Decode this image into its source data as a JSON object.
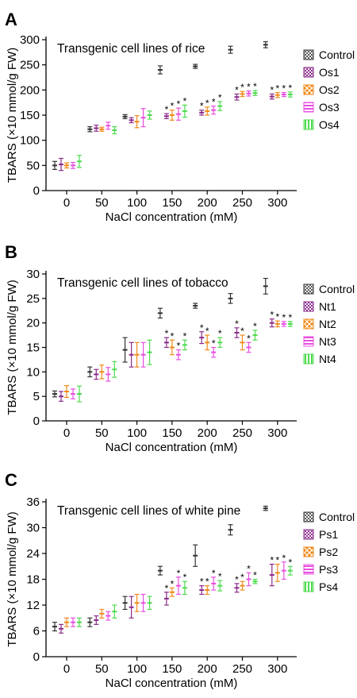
{
  "figure": {
    "panel_letters": [
      "A",
      "B",
      "C"
    ]
  },
  "colors": {
    "Control": "#333333",
    "series1": "#8a2b8a",
    "series2": "#f08a1a",
    "series3": "#e84fe0",
    "series4": "#4ddb4d",
    "axis": "#000000",
    "star": "#000000"
  },
  "chart_data": [
    {
      "type": "scatter",
      "panel": "A",
      "annotation": "Transgenic cell lines of rice",
      "xlabel": "NaCl concentration (mM)",
      "ylabel": "TBARS (×10 mmol/g FW)",
      "x_ticks": [
        "0",
        "50",
        "100",
        "150",
        "200",
        "250",
        "300"
      ],
      "y_ticks": [
        "0",
        "50",
        "100",
        "150",
        "200",
        "250",
        "300"
      ],
      "ylim": [
        0,
        300
      ],
      "legend": [
        "Control",
        "Os1",
        "Os2",
        "Os3",
        "Os4"
      ],
      "legend_position": "right",
      "series": [
        {
          "name": "Control",
          "x": [
            0,
            50,
            100,
            150,
            200,
            250,
            300
          ],
          "y": [
            50,
            122,
            147,
            240,
            247,
            280,
            290
          ],
          "err": [
            8,
            5,
            4,
            8,
            4,
            7,
            6
          ],
          "stars": [
            false,
            false,
            false,
            false,
            false,
            false,
            false
          ]
        },
        {
          "name": "Os1",
          "x": [
            0,
            50,
            100,
            150,
            200,
            250,
            300
          ],
          "y": [
            52,
            124,
            140,
            148,
            155,
            186,
            187
          ],
          "err": [
            12,
            6,
            5,
            5,
            5,
            6,
            5
          ],
          "stars": [
            false,
            false,
            false,
            true,
            true,
            true,
            true
          ]
        },
        {
          "name": "Os2",
          "x": [
            0,
            50,
            100,
            150,
            200,
            250,
            300
          ],
          "y": [
            50,
            122,
            137,
            150,
            158,
            192,
            190
          ],
          "err": [
            5,
            4,
            12,
            10,
            8,
            5,
            5
          ],
          "stars": [
            false,
            false,
            false,
            true,
            true,
            true,
            true
          ]
        },
        {
          "name": "Os3",
          "x": [
            0,
            50,
            100,
            150,
            200,
            250,
            300
          ],
          "y": [
            50,
            129,
            145,
            152,
            160,
            193,
            191
          ],
          "err": [
            6,
            7,
            18,
            12,
            8,
            5,
            4
          ],
          "stars": [
            false,
            false,
            false,
            true,
            true,
            true,
            true
          ]
        },
        {
          "name": "Os4",
          "x": [
            0,
            50,
            100,
            150,
            200,
            250,
            300
          ],
          "y": [
            58,
            120,
            150,
            158,
            168,
            194,
            191
          ],
          "err": [
            12,
            7,
            8,
            12,
            9,
            5,
            5
          ],
          "stars": [
            false,
            false,
            false,
            true,
            true,
            true,
            true
          ]
        }
      ]
    },
    {
      "type": "scatter",
      "panel": "B",
      "annotation": "Transgenic cell lines of tobacco",
      "xlabel": "NaCl concentration (mM)",
      "ylabel": "TBARS (×10 mmol/g FW)",
      "x_ticks": [
        "0",
        "50",
        "100",
        "150",
        "200",
        "250",
        "300"
      ],
      "y_ticks": [
        "0",
        "5",
        "10",
        "15",
        "20",
        "25",
        "30"
      ],
      "ylim": [
        0,
        30
      ],
      "legend": [
        "Control",
        "Nt1",
        "Nt2",
        "Nt3",
        "Nt4"
      ],
      "legend_position": "right",
      "series": [
        {
          "name": "Control",
          "x": [
            0,
            50,
            100,
            150,
            200,
            250,
            300
          ],
          "y": [
            5.5,
            10,
            14.5,
            22,
            23.5,
            25,
            27.5
          ],
          "err": [
            0.6,
            1.0,
            2.5,
            1.0,
            0.5,
            1.0,
            1.6
          ],
          "stars": [
            false,
            false,
            false,
            false,
            false,
            false,
            false
          ]
        },
        {
          "name": "Nt1",
          "x": [
            0,
            50,
            100,
            150,
            200,
            250,
            300
          ],
          "y": [
            5,
            9.5,
            13.5,
            16,
            17,
            18,
            20
          ],
          "err": [
            1.0,
            1.0,
            2.5,
            1.0,
            1.2,
            1.0,
            0.8
          ],
          "stars": [
            false,
            false,
            false,
            true,
            true,
            true,
            true
          ]
        },
        {
          "name": "Nt2",
          "x": [
            0,
            50,
            100,
            150,
            200,
            250,
            300
          ],
          "y": [
            6,
            10,
            13.5,
            15,
            16,
            16,
            19.8
          ],
          "err": [
            1.2,
            1.4,
            2.5,
            1.5,
            1.5,
            1.5,
            0.6
          ],
          "stars": [
            false,
            false,
            false,
            true,
            true,
            true,
            true
          ]
        },
        {
          "name": "Nt3",
          "x": [
            0,
            50,
            100,
            150,
            200,
            250,
            300
          ],
          "y": [
            5.5,
            9.5,
            13.5,
            13.5,
            14,
            15,
            19.8
          ],
          "err": [
            1.0,
            1.4,
            2.5,
            1.0,
            1.0,
            1.0,
            0.5
          ],
          "stars": [
            false,
            false,
            false,
            true,
            true,
            true,
            true
          ]
        },
        {
          "name": "Nt4",
          "x": [
            0,
            50,
            100,
            150,
            200,
            250,
            300
          ],
          "y": [
            5.5,
            10.5,
            14,
            15.5,
            16,
            17.5,
            19.8
          ],
          "err": [
            1.6,
            1.6,
            2.5,
            1.0,
            1.0,
            1.0,
            0.5
          ],
          "stars": [
            false,
            false,
            false,
            true,
            true,
            true,
            true
          ]
        }
      ]
    },
    {
      "type": "scatter",
      "panel": "C",
      "annotation": "Transgenic cell lines of white pine",
      "xlabel": "NaCl concentration (mM)",
      "ylabel": "TBARS (×10 mmol/g FW)",
      "x_ticks": [
        "0",
        "50",
        "100",
        "150",
        "200",
        "250",
        "300"
      ],
      "y_ticks": [
        "0",
        "6",
        "12",
        "18",
        "24",
        "30",
        "36"
      ],
      "ylim": [
        0,
        36
      ],
      "legend": [
        "Control",
        "Ps1",
        "Ps2",
        "Ps3",
        "Ps4"
      ],
      "legend_position": "right",
      "series": [
        {
          "name": "Control",
          "x": [
            0,
            50,
            100,
            150,
            200,
            250,
            300
          ],
          "y": [
            7,
            8,
            12.5,
            20,
            23.5,
            29.5,
            34.5
          ],
          "err": [
            1.0,
            1.0,
            1.5,
            1.0,
            2.5,
            1.2,
            0.5
          ],
          "stars": [
            false,
            false,
            false,
            false,
            false,
            false,
            false
          ]
        },
        {
          "name": "Ps1",
          "x": [
            0,
            50,
            100,
            150,
            200,
            250,
            300
          ],
          "y": [
            6.5,
            8.5,
            11.5,
            13.5,
            15.5,
            16,
            19
          ],
          "err": [
            1.0,
            1.0,
            2.5,
            1.5,
            1.0,
            1.0,
            2.5
          ],
          "stars": [
            false,
            false,
            false,
            true,
            true,
            true,
            true
          ]
        },
        {
          "name": "Ps2",
          "x": [
            0,
            50,
            100,
            150,
            200,
            250,
            300
          ],
          "y": [
            8,
            10,
            12.5,
            15,
            15.5,
            16.5,
            19.5
          ],
          "err": [
            1.0,
            1.0,
            2.0,
            1.0,
            1.0,
            1.0,
            2.0
          ],
          "stars": [
            false,
            false,
            false,
            true,
            true,
            true,
            true
          ]
        },
        {
          "name": "Ps3",
          "x": [
            0,
            50,
            100,
            150,
            200,
            250,
            300
          ],
          "y": [
            8,
            9.5,
            12.5,
            16.5,
            17,
            18,
            20
          ],
          "err": [
            1.0,
            1.0,
            2.0,
            2.0,
            1.5,
            1.5,
            2.0
          ],
          "stars": [
            false,
            false,
            false,
            true,
            true,
            true,
            true
          ]
        },
        {
          "name": "Ps4",
          "x": [
            0,
            50,
            100,
            150,
            200,
            250,
            300
          ],
          "y": [
            8,
            10.5,
            12.5,
            16,
            16.5,
            17.5,
            20
          ],
          "err": [
            1.0,
            1.5,
            1.5,
            1.5,
            1.2,
            0.5,
            1.0
          ],
          "stars": [
            false,
            false,
            false,
            true,
            true,
            true,
            true
          ]
        }
      ]
    }
  ]
}
